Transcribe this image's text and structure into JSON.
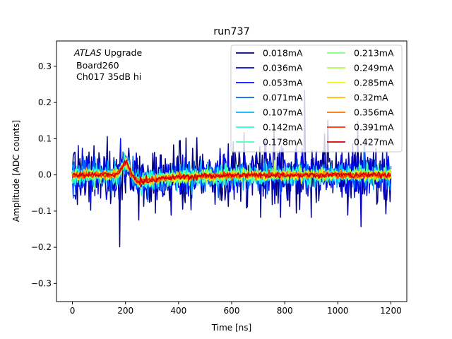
{
  "chart_data": {
    "type": "line",
    "title": "run737",
    "xlabel": "Time [ns]",
    "ylabel": "Amplitude [ADC counts]",
    "xlim": [
      -60,
      1260
    ],
    "ylim": [
      -0.35,
      0.37
    ],
    "xticks": [
      0,
      200,
      400,
      600,
      800,
      1000,
      1200
    ],
    "yticks": [
      -0.3,
      -0.2,
      -0.1,
      0.0,
      0.1,
      0.2,
      0.3
    ],
    "x_range_of_traces": [
      0,
      1200
    ],
    "sample_step_ns": 3.125,
    "legend_position": "top-right",
    "legend_columns": 2,
    "annotations": {
      "experiment": "ATLAS",
      "experiment_suffix": "Upgrade",
      "board": "Board260",
      "channel": "Ch017 35dB hi"
    },
    "pulse": {
      "peak_time_ns": 200,
      "peak_amplitude": 0.035,
      "undershoot_time_ns": 260,
      "undershoot_amplitude": -0.022,
      "recovery_to_zero_ns": 700
    },
    "series": [
      {
        "name": "0.018mA",
        "color": "#00007f",
        "noise_amplitude": 0.16
      },
      {
        "name": "0.036mA",
        "color": "#0000d1",
        "noise_amplitude": 0.11
      },
      {
        "name": "0.053mA",
        "color": "#0010ff",
        "noise_amplitude": 0.085
      },
      {
        "name": "0.071mA",
        "color": "#0064ff",
        "noise_amplitude": 0.07
      },
      {
        "name": "0.107mA",
        "color": "#00b4ff",
        "noise_amplitude": 0.055
      },
      {
        "name": "0.142mA",
        "color": "#1fffd7",
        "noise_amplitude": 0.045
      },
      {
        "name": "0.178mA",
        "color": "#4dffaa",
        "noise_amplitude": 0.038
      },
      {
        "name": "0.213mA",
        "color": "#7dff7a",
        "noise_amplitude": 0.032
      },
      {
        "name": "0.249mA",
        "color": "#b0ff46",
        "noise_amplitude": 0.027
      },
      {
        "name": "0.285mA",
        "color": "#f4f802",
        "noise_amplitude": 0.023
      },
      {
        "name": "0.32mA",
        "color": "#ffb900",
        "noise_amplitude": 0.02
      },
      {
        "name": "0.356mA",
        "color": "#ff7300",
        "noise_amplitude": 0.018
      },
      {
        "name": "0.391mA",
        "color": "#ff2900",
        "noise_amplitude": 0.016
      },
      {
        "name": "0.427mA",
        "color": "#d10000",
        "noise_amplitude": 0.014
      }
    ]
  }
}
